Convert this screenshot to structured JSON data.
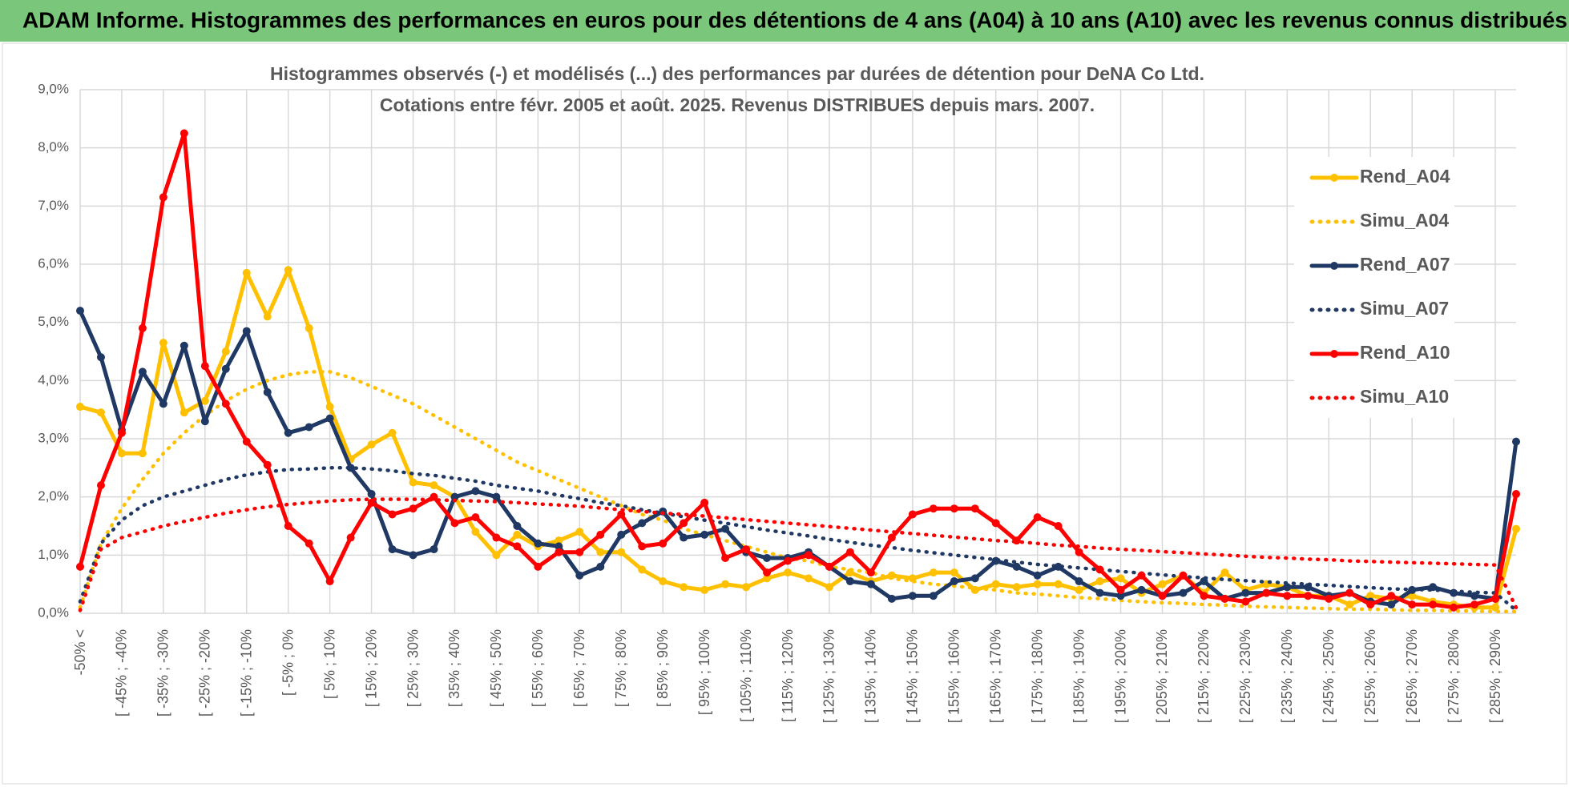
{
  "header": "ADAM Informe. Histogrammes des performances en euros pour des détentions de 4 ans (A04) à 10 ans (A10) avec les revenus connus distribués",
  "chart_data": {
    "type": "line",
    "title": "Histogrammes observés (-) et modélisés (...) des performances par durées de détention pour DeNA Co Ltd.",
    "subtitle": "Cotations entre févr. 2005 et août. 2025. Revenus DISTRIBUES depuis mars. 2007.",
    "categories": [
      "-50% <",
      null,
      "[ -45% ; -40%",
      null,
      "[ -35% ; -30%",
      null,
      "[ -25% ; -20%",
      null,
      "[ -15% ; -10%",
      null,
      "[ -5% ; 0%",
      null,
      "[ 5% ; 10%",
      null,
      "[ 15% ; 20%",
      null,
      "[ 25% ; 30%",
      null,
      "[ 35% ; 40%",
      null,
      "[ 45% ; 50%",
      null,
      "[ 55% ; 60%",
      null,
      "[ 65% ; 70%",
      null,
      "[ 75% ; 80%",
      null,
      "[ 85% ; 90%",
      null,
      "[ 95% ; 100%",
      null,
      "[ 105% ; 110%",
      null,
      "[ 115% ; 120%",
      null,
      "[ 125% ; 130%",
      null,
      "[ 135% ; 140%",
      null,
      "[ 145% ; 150%",
      null,
      "[ 155% ; 160%",
      null,
      "[ 165% ; 170%",
      null,
      "[ 175% ; 180%",
      null,
      "[ 185% ; 190%",
      null,
      "[ 195% ; 200%",
      null,
      "[ 205% ; 210%",
      null,
      "[ 215% ; 220%",
      null,
      "[ 225% ; 230%",
      null,
      "[ 235% ; 240%",
      null,
      "[ 245% ; 250%",
      null,
      "[ 255% ; 260%",
      null,
      "[ 265% ; 270%",
      null,
      "[ 275% ; 280%",
      null,
      "[ 285% ; 290%",
      null
    ],
    "ylim": [
      0,
      9
    ],
    "yticks": [
      {
        "value": 0,
        "label": "0,0%"
      },
      {
        "value": 1,
        "label": "1,0%"
      },
      {
        "value": 2,
        "label": "2,0%"
      },
      {
        "value": 3,
        "label": "3,0%"
      },
      {
        "value": 4,
        "label": "4,0%"
      },
      {
        "value": 5,
        "label": "5,0%"
      },
      {
        "value": 6,
        "label": "6,0%"
      },
      {
        "value": 7,
        "label": "7,0%"
      },
      {
        "value": 8,
        "label": "8,0%"
      },
      {
        "value": 9,
        "label": "9,0%"
      }
    ],
    "grid": true,
    "legend": "right",
    "series": [
      {
        "name": "Rend_A04",
        "color": "#ffc000",
        "line_style": "solid",
        "markers": true,
        "values": [
          3.55,
          3.45,
          2.75,
          2.75,
          4.65,
          3.45,
          3.65,
          4.5,
          5.85,
          5.1,
          5.9,
          4.9,
          3.55,
          2.65,
          2.9,
          3.1,
          2.25,
          2.2,
          2.0,
          1.4,
          1.0,
          1.35,
          1.15,
          1.25,
          1.4,
          1.05,
          1.05,
          0.75,
          0.55,
          0.45,
          0.4,
          0.5,
          0.45,
          0.6,
          0.7,
          0.6,
          0.45,
          0.7,
          0.55,
          0.65,
          0.6,
          0.7,
          0.7,
          0.4,
          0.5,
          0.45,
          0.5,
          0.5,
          0.4,
          0.55,
          0.6,
          0.35,
          0.5,
          0.65,
          0.35,
          0.7,
          0.4,
          0.5,
          0.45,
          0.3,
          0.3,
          0.15,
          0.3,
          0.25,
          0.3,
          0.2,
          0.15,
          0.1,
          0.1,
          1.45
        ]
      },
      {
        "name": "Simu_A04",
        "color": "#ffc000",
        "line_style": "dotted",
        "markers": false,
        "values": [
          0.1,
          1.2,
          1.8,
          2.3,
          2.75,
          3.1,
          3.4,
          3.65,
          3.85,
          4.0,
          4.1,
          4.15,
          4.15,
          4.05,
          3.9,
          3.75,
          3.6,
          3.4,
          3.2,
          3.0,
          2.8,
          2.6,
          2.45,
          2.3,
          2.15,
          2.0,
          1.85,
          1.7,
          1.6,
          1.45,
          1.35,
          1.25,
          1.15,
          1.05,
          0.95,
          0.9,
          0.8,
          0.75,
          0.7,
          0.6,
          0.55,
          0.5,
          0.47,
          0.43,
          0.4,
          0.35,
          0.33,
          0.3,
          0.27,
          0.25,
          0.22,
          0.2,
          0.18,
          0.17,
          0.15,
          0.14,
          0.12,
          0.11,
          0.1,
          0.09,
          0.08,
          0.07,
          0.07,
          0.06,
          0.05,
          0.05,
          0.04,
          0.04,
          0.03,
          0.03
        ]
      },
      {
        "name": "Rend_A07",
        "color": "#1f3864",
        "line_style": "solid",
        "markers": true,
        "values": [
          5.2,
          4.4,
          3.15,
          4.15,
          3.6,
          4.6,
          3.3,
          4.2,
          4.85,
          3.8,
          3.1,
          3.2,
          3.35,
          2.5,
          2.05,
          1.1,
          1.0,
          1.1,
          2.0,
          2.1,
          2.0,
          1.5,
          1.2,
          1.15,
          0.65,
          0.8,
          1.35,
          1.55,
          1.75,
          1.3,
          1.35,
          1.45,
          1.05,
          0.95,
          0.95,
          1.05,
          0.8,
          0.55,
          0.5,
          0.25,
          0.3,
          0.3,
          0.55,
          0.6,
          0.9,
          0.8,
          0.65,
          0.8,
          0.55,
          0.35,
          0.3,
          0.4,
          0.3,
          0.35,
          0.55,
          0.25,
          0.35,
          0.35,
          0.45,
          0.45,
          0.3,
          0.35,
          0.2,
          0.15,
          0.4,
          0.45,
          0.35,
          0.3,
          0.25,
          2.95
        ]
      },
      {
        "name": "Simu_A07",
        "color": "#1f3864",
        "line_style": "dotted",
        "markers": false,
        "values": [
          0.2,
          1.2,
          1.6,
          1.85,
          2.0,
          2.1,
          2.2,
          2.3,
          2.38,
          2.43,
          2.47,
          2.48,
          2.5,
          2.5,
          2.48,
          2.45,
          2.4,
          2.37,
          2.32,
          2.27,
          2.2,
          2.15,
          2.1,
          2.03,
          1.97,
          1.9,
          1.85,
          1.78,
          1.72,
          1.66,
          1.6,
          1.55,
          1.49,
          1.43,
          1.38,
          1.33,
          1.27,
          1.22,
          1.17,
          1.13,
          1.08,
          1.04,
          1.0,
          0.96,
          0.92,
          0.88,
          0.84,
          0.81,
          0.78,
          0.75,
          0.72,
          0.69,
          0.66,
          0.63,
          0.61,
          0.58,
          0.56,
          0.54,
          0.52,
          0.5,
          0.48,
          0.46,
          0.44,
          0.42,
          0.41,
          0.4,
          0.38,
          0.36,
          0.35,
          0.05
        ]
      },
      {
        "name": "Rend_A10",
        "color": "#ff0000",
        "line_style": "solid",
        "markers": true,
        "values": [
          0.8,
          2.2,
          3.1,
          4.9,
          7.15,
          8.25,
          4.25,
          3.6,
          2.95,
          2.55,
          1.5,
          1.2,
          0.55,
          1.3,
          1.9,
          1.7,
          1.8,
          2.0,
          1.55,
          1.65,
          1.3,
          1.15,
          0.8,
          1.05,
          1.05,
          1.35,
          1.7,
          1.15,
          1.2,
          1.55,
          1.9,
          0.95,
          1.1,
          0.7,
          0.9,
          1.0,
          0.8,
          1.05,
          0.7,
          1.3,
          1.7,
          1.8,
          1.8,
          1.8,
          1.55,
          1.25,
          1.65,
          1.5,
          1.05,
          0.75,
          0.4,
          0.65,
          0.3,
          0.65,
          0.3,
          0.25,
          0.2,
          0.35,
          0.3,
          0.3,
          0.25,
          0.35,
          0.15,
          0.3,
          0.15,
          0.15,
          0.1,
          0.15,
          0.25,
          2.05
        ]
      },
      {
        "name": "Simu_A10",
        "color": "#ff0000",
        "line_style": "dotted",
        "markers": false,
        "values": [
          0.05,
          1.1,
          1.3,
          1.4,
          1.5,
          1.58,
          1.65,
          1.72,
          1.78,
          1.83,
          1.87,
          1.9,
          1.93,
          1.95,
          1.96,
          1.96,
          1.96,
          1.95,
          1.94,
          1.93,
          1.92,
          1.9,
          1.88,
          1.86,
          1.84,
          1.81,
          1.78,
          1.75,
          1.72,
          1.7,
          1.67,
          1.64,
          1.61,
          1.58,
          1.55,
          1.52,
          1.49,
          1.46,
          1.43,
          1.4,
          1.37,
          1.34,
          1.31,
          1.28,
          1.25,
          1.23,
          1.2,
          1.17,
          1.15,
          1.12,
          1.1,
          1.08,
          1.06,
          1.04,
          1.02,
          1.0,
          0.98,
          0.96,
          0.95,
          0.93,
          0.92,
          0.9,
          0.89,
          0.88,
          0.87,
          0.86,
          0.85,
          0.84,
          0.83,
          0.1
        ]
      }
    ]
  }
}
